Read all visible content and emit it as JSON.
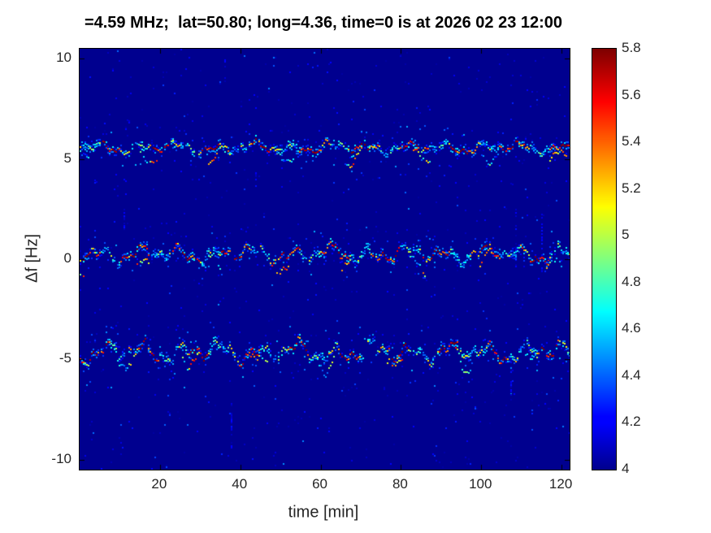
{
  "chart_data": {
    "type": "heatmap",
    "title": "=4.59 MHz;  lat=50.80; long=4.36, time=0 is at 2026 02 23 12:00",
    "xlabel": "time [min]",
    "ylabel": "Δf [Hz]",
    "xlim": [
      0,
      122
    ],
    "ylim": [
      -10.5,
      10.5
    ],
    "xticks": [
      20,
      40,
      60,
      80,
      100,
      120
    ],
    "yticks": [
      10,
      5,
      0,
      -5,
      -10
    ],
    "grid": false,
    "colormap": "jet",
    "background_value": 4,
    "colorbar": {
      "position": "right",
      "label_min": 4,
      "label_max": 5.8,
      "ticks": [
        5.8,
        5.6,
        5.4,
        5.2,
        5,
        4.8,
        4.6,
        4.4,
        4.2,
        4
      ]
    },
    "traces": [
      {
        "name": "upper-doppler-trace",
        "center_hz": 5.6,
        "wiggle_amplitude_hz": 0.3,
        "time_span_min": [
          0,
          122
        ],
        "intensity_range": [
          4.4,
          5.8
        ]
      },
      {
        "name": "center-doppler-trace",
        "center_hz": 0.3,
        "wiggle_amplitude_hz": 0.45,
        "time_span_min": [
          0,
          122
        ],
        "intensity_range": [
          4.4,
          5.8
        ]
      },
      {
        "name": "lower-doppler-trace",
        "center_hz": -4.6,
        "wiggle_amplitude_hz": 0.55,
        "time_span_min": [
          0,
          122
        ],
        "intensity_range": [
          4.4,
          5.8
        ]
      }
    ],
    "description": "Doppler spectrogram: three speckled wavy horizontal traces (cyan/green/orange/red) over a uniform dark-blue background of value 4"
  }
}
